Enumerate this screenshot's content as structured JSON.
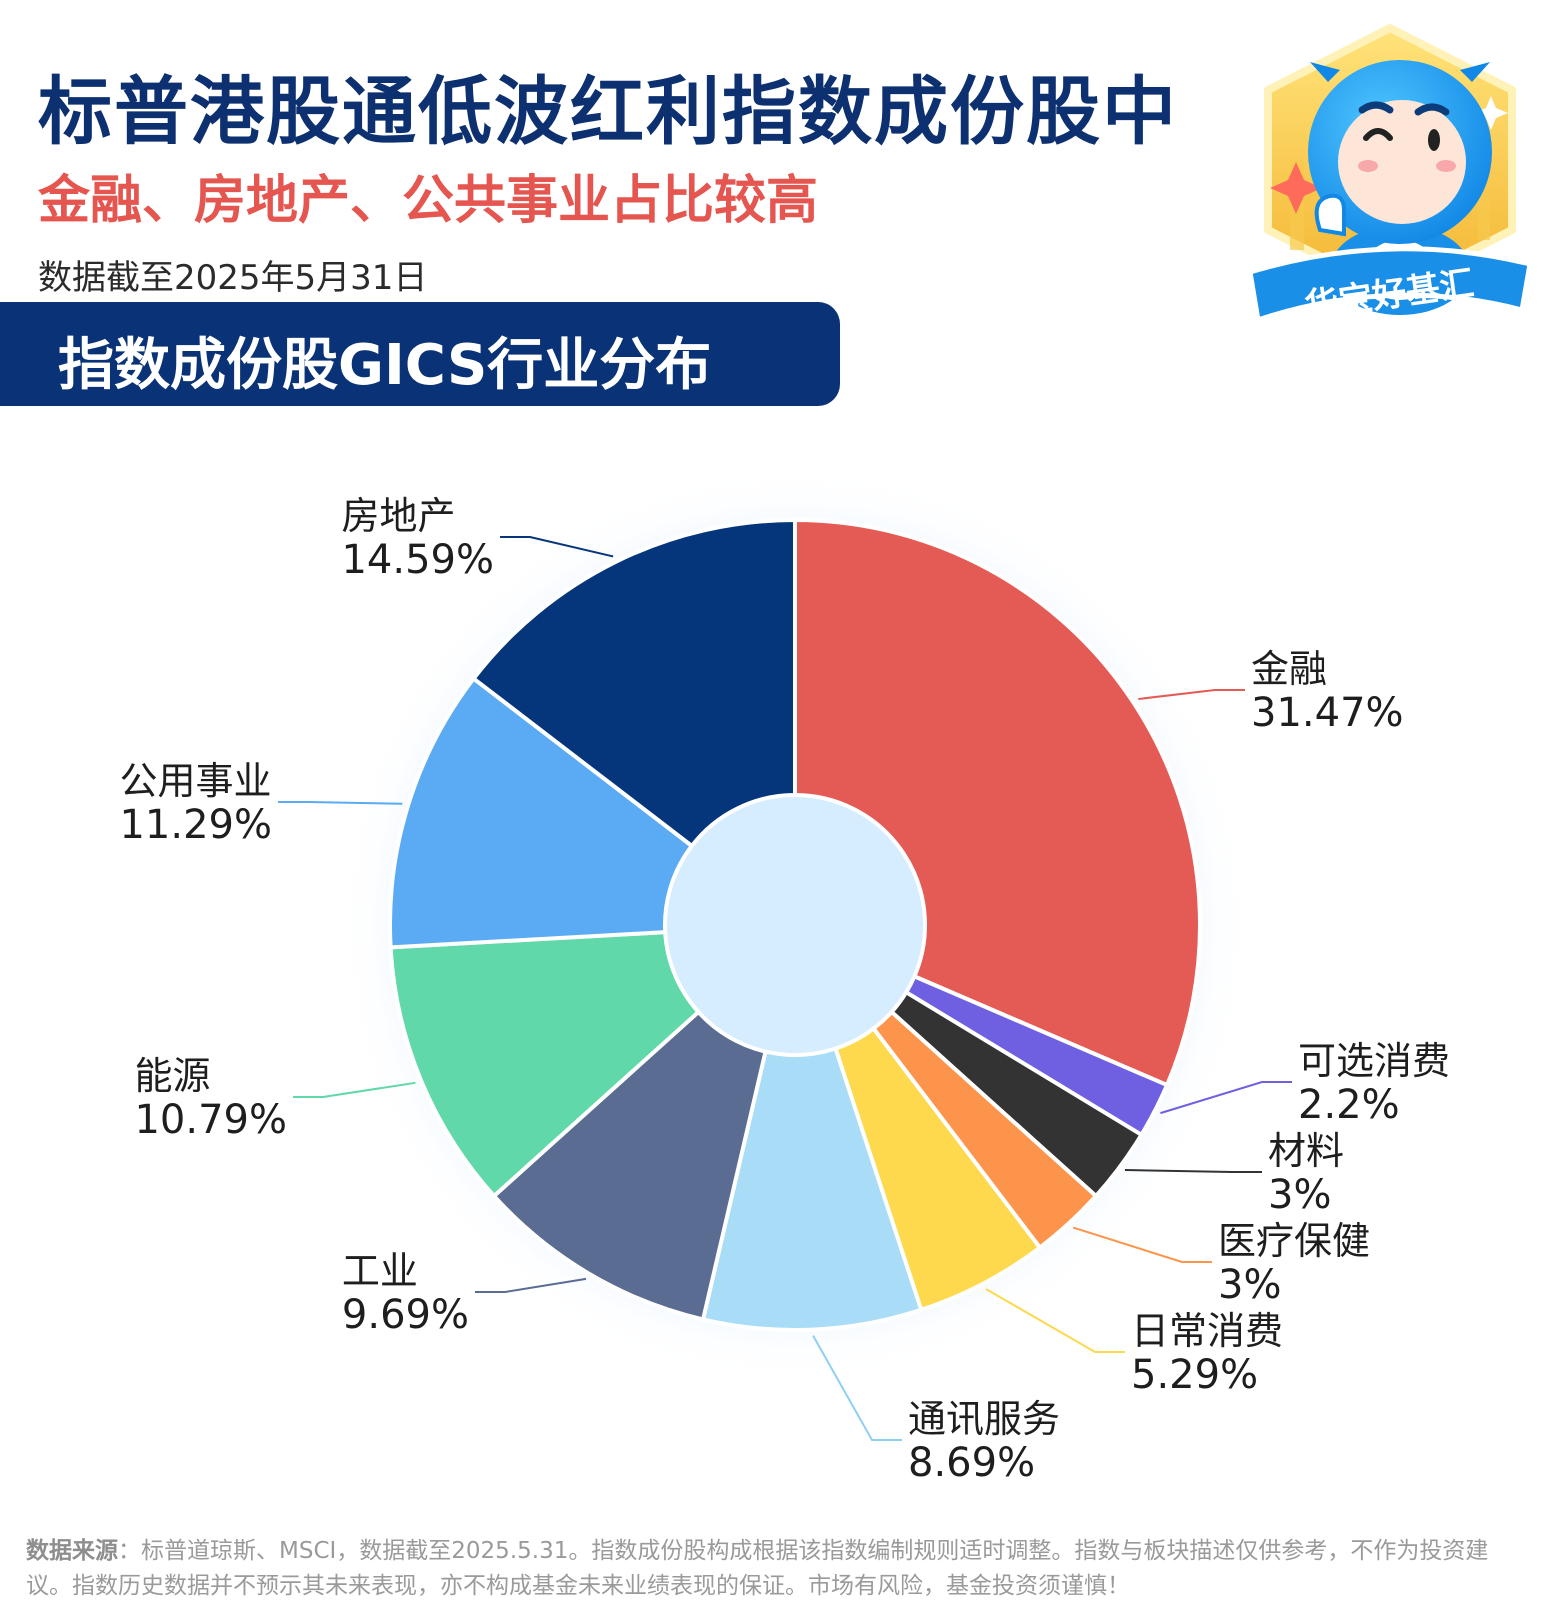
{
  "header": {
    "title": "标普港股通低波红利指数成份股中",
    "subtitle": "金融、房地产、公共事业占比较高",
    "date": "数据截至2025年5月31日",
    "banner": "指数成份股GICS行业分布"
  },
  "badge": {
    "text": "华宝好基汇"
  },
  "chart_data": {
    "type": "pie",
    "donut": true,
    "unit": "%",
    "slices": [
      {
        "name": "金融",
        "value": 31.47,
        "label": "31.47%",
        "color": "#e45a55"
      },
      {
        "name": "可选消费",
        "value": 2.2,
        "label": "2.2%",
        "color": "#6f60e2"
      },
      {
        "name": "材料",
        "value": 3,
        "label": "3%",
        "color": "#333333"
      },
      {
        "name": "医疗保健",
        "value": 3,
        "label": "3%",
        "color": "#fd944b"
      },
      {
        "name": "日常消费",
        "value": 5.29,
        "label": "5.29%",
        "color": "#fed94e"
      },
      {
        "name": "通讯服务",
        "value": 8.69,
        "label": "8.69%",
        "color": "#a8dcf7"
      },
      {
        "name": "工业",
        "value": 9.69,
        "label": "9.69%",
        "color": "#5b6c93"
      },
      {
        "name": "能源",
        "value": 10.79,
        "label": "10.79%",
        "color": "#60d8a9"
      },
      {
        "name": "公用事业",
        "value": 11.29,
        "label": "11.29%",
        "color": "#5aabf4"
      },
      {
        "name": "房地产",
        "value": 14.59,
        "label": "14.59%",
        "color": "#05357a"
      }
    ]
  },
  "footnote": {
    "source_label": "数据来源",
    "text": "：标普道琼斯、MSCI，数据截至2025.5.31。指数成份股构成根据该指数编制规则适时调整。指数与板块描述仅供参考，不作为投资建议。指数历史数据并不预示其未来表现，亦不构成基金未来业绩表现的保证。市场有风险，基金投资须谨慎！"
  }
}
